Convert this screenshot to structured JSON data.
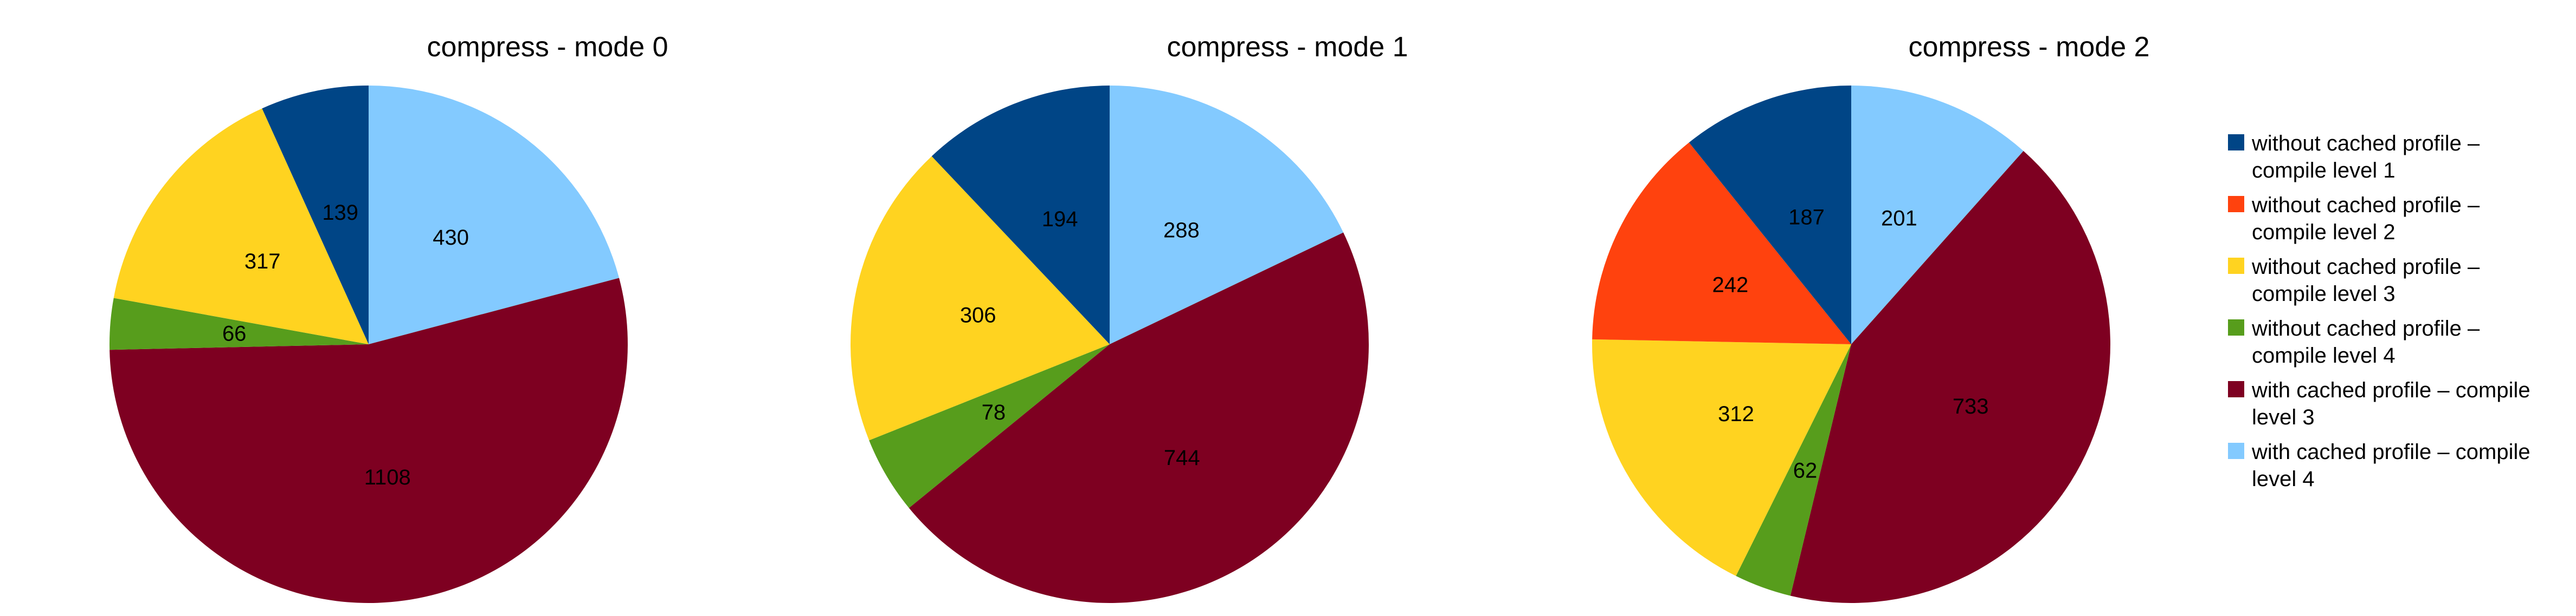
{
  "legend": {
    "placement": "right",
    "entries": [
      {
        "lines": [
          "without cached profile –",
          "compile level 1"
        ],
        "color": "#004586"
      },
      {
        "lines": [
          "without cached profile –",
          "compile level 2"
        ],
        "color": "#ff420e"
      },
      {
        "lines": [
          "without cached profile –",
          "compile level 3"
        ],
        "color": "#ffd320"
      },
      {
        "lines": [
          "without cached profile –",
          "compile level 4"
        ],
        "color": "#579d1c"
      },
      {
        "lines": [
          "with cached profile – compile",
          "level 3"
        ],
        "color": "#7e0021"
      },
      {
        "lines": [
          "with cached profile – compile",
          "level 4"
        ],
        "color": "#83caff"
      }
    ]
  },
  "chart_data": [
    {
      "type": "pie",
      "title": "compress - mode 0",
      "categories": [
        "without cached profile – compile level 1",
        "without cached profile – compile level 2",
        "without cached profile – compile level 3",
        "without cached profile – compile level 4",
        "with cached profile – compile level 3",
        "with cached profile – compile level 4"
      ],
      "values": [
        139,
        0,
        317,
        66,
        1108,
        430
      ],
      "labels": [
        "139",
        "",
        "317",
        "66",
        "1108",
        "430"
      ]
    },
    {
      "type": "pie",
      "title": "compress - mode 1",
      "categories": [
        "without cached profile – compile level 1",
        "without cached profile – compile level 2",
        "without cached profile – compile level 3",
        "without cached profile – compile level 4",
        "with cached profile – compile level 3",
        "with cached profile – compile level 4"
      ],
      "values": [
        194,
        0,
        306,
        78,
        744,
        288
      ],
      "labels": [
        "194",
        "",
        "306",
        "78",
        "744",
        "288"
      ]
    },
    {
      "type": "pie",
      "title": "compress - mode 2",
      "categories": [
        "without cached profile – compile level 1",
        "without cached profile – compile level 2",
        "without cached profile – compile level 3",
        "without cached profile – compile level 4",
        "with cached profile – compile level 3",
        "with cached profile – compile level 4"
      ],
      "values": [
        187,
        242,
        312,
        62,
        733,
        201
      ],
      "labels": [
        "187",
        "242",
        "312",
        "62",
        "733",
        "201"
      ]
    }
  ]
}
